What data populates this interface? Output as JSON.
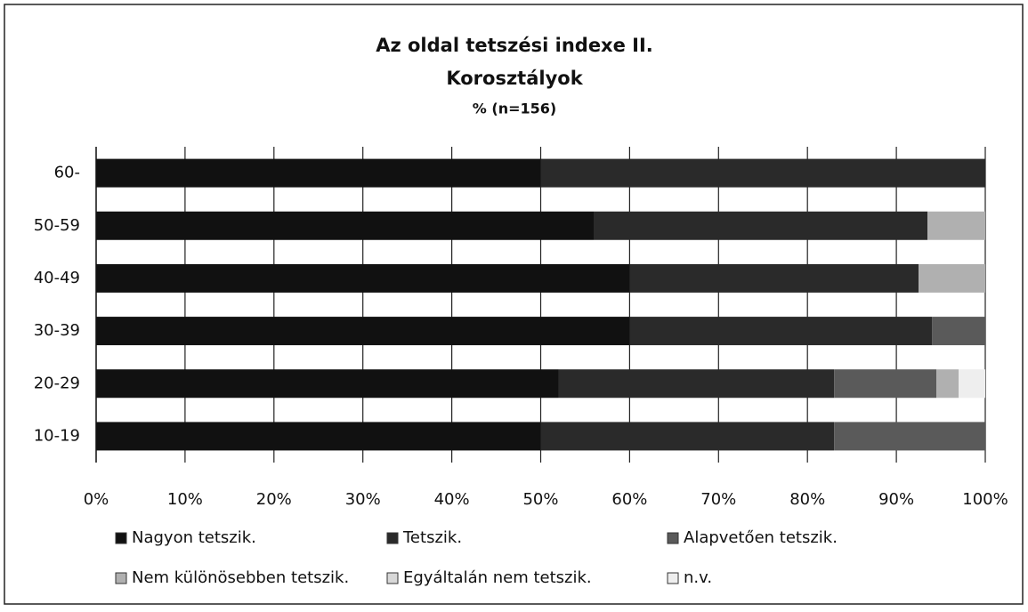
{
  "chart_data": {
    "type": "stacked_barh",
    "title": "Az oldal tetszési indexe II.",
    "subtitle": "Korosztályok",
    "note": "% (n=156)",
    "categories": [
      "10-19",
      "20-29",
      "30-39",
      "40-49",
      "50-59",
      "60-"
    ],
    "series": [
      {
        "name": "Nagyon tetszik.",
        "color": "#111111",
        "values": [
          50,
          52,
          60,
          60,
          56,
          50
        ]
      },
      {
        "name": "Tetszik.",
        "color": "#2a2a2a",
        "values": [
          33,
          31,
          34,
          32.5,
          37.5,
          50
        ]
      },
      {
        "name": "Alapvetően tetszik.",
        "color": "#5a5a5a",
        "values": [
          17,
          11.5,
          6,
          0,
          0,
          0
        ]
      },
      {
        "name": "Nem különösebben tetszik.",
        "color": "#b0b0b0",
        "values": [
          0,
          2.5,
          0,
          7.5,
          6.5,
          0
        ]
      },
      {
        "name": "Egyáltalán nem tetszik.",
        "color": "#d8d8d8",
        "values": [
          0,
          0,
          0,
          0,
          0,
          0
        ]
      },
      {
        "name": "n.v.",
        "color": "#eeeeee",
        "values": [
          0,
          3,
          0,
          0,
          0,
          0
        ]
      }
    ],
    "xlim": [
      0,
      100
    ],
    "xticks": [
      {
        "value": 0,
        "label": "0%"
      },
      {
        "value": 10,
        "label": "10%"
      },
      {
        "value": 20,
        "label": "20%"
      },
      {
        "value": 30,
        "label": "30%"
      },
      {
        "value": 40,
        "label": "40%"
      },
      {
        "value": 50,
        "label": "50%"
      },
      {
        "value": 60,
        "label": "60%"
      },
      {
        "value": 70,
        "label": "70%"
      },
      {
        "value": 80,
        "label": "80%"
      },
      {
        "value": 90,
        "label": "90%"
      },
      {
        "value": 100,
        "label": "100%"
      }
    ],
    "grid": true
  }
}
